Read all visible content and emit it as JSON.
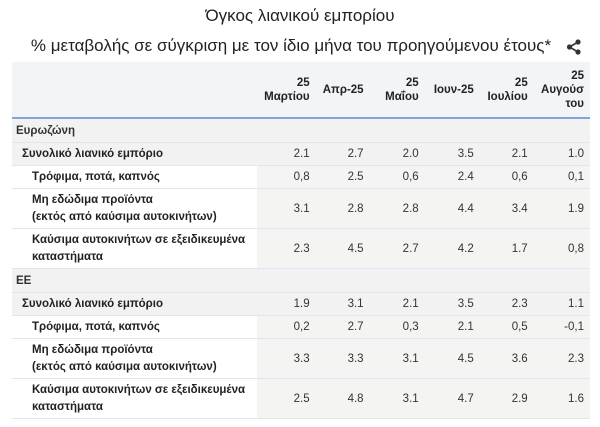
{
  "title": "Όγκος λιανικού εμπορίου",
  "subtitle": "% μεταβολής σε σύγκριση με τον ίδιο μήνα του προηγούμενου έτους*",
  "share_icon": "share-icon",
  "columns": [
    "25 Μαρτίου",
    "Απρ-25",
    "25 Μαΐου",
    "Ιουν-25",
    "25 Ιουλίου",
    "25 Αυγούσ του"
  ],
  "sections": [
    {
      "name": "Ευρωζώνη",
      "rows": [
        {
          "label": "Συνολικό λιανικό εμπόριο",
          "values": [
            "2.1",
            "2.7",
            "2.0",
            "3.5",
            "2.1",
            "1.0"
          ]
        },
        {
          "label": "Τρόφιμα, ποτά, καπνός",
          "values": [
            "0,8",
            "2.5",
            "0,6",
            "2.4",
            "0,6",
            "0,1"
          ]
        },
        {
          "label": "Μη εδώδιμα προϊόντα\n(εκτός από καύσιμα αυτοκινήτων)",
          "values": [
            "3.1",
            "2.8",
            "2.8",
            "4.4",
            "3.4",
            "1.9"
          ]
        },
        {
          "label": "Καύσιμα αυτοκινήτων σε εξειδικευμένα καταστήματα",
          "values": [
            "2.3",
            "4.5",
            "2.7",
            "4.2",
            "1.7",
            "0,8"
          ]
        }
      ]
    },
    {
      "name": "ΕΕ",
      "rows": [
        {
          "label": "Συνολικό λιανικό εμπόριο",
          "values": [
            "1.9",
            "3.1",
            "2.1",
            "3.5",
            "2.3",
            "1.1"
          ]
        },
        {
          "label": "Τρόφιμα, ποτά, καπνός",
          "values": [
            "0,2",
            "2.7",
            "0,3",
            "2.1",
            "0,5",
            "-0,1"
          ]
        },
        {
          "label": "Μη εδώδιμα προϊόντα\n(εκτός από καύσιμα αυτοκινήτων)",
          "values": [
            "3.3",
            "3.3",
            "3.1",
            "4.5",
            "3.6",
            "2.3"
          ]
        },
        {
          "label": "Καύσιμα αυτοκινήτων σε εξειδικευμένα καταστήματα",
          "values": [
            "2.5",
            "4.8",
            "3.1",
            "4.7",
            "2.9",
            "1.6"
          ]
        }
      ]
    }
  ]
}
